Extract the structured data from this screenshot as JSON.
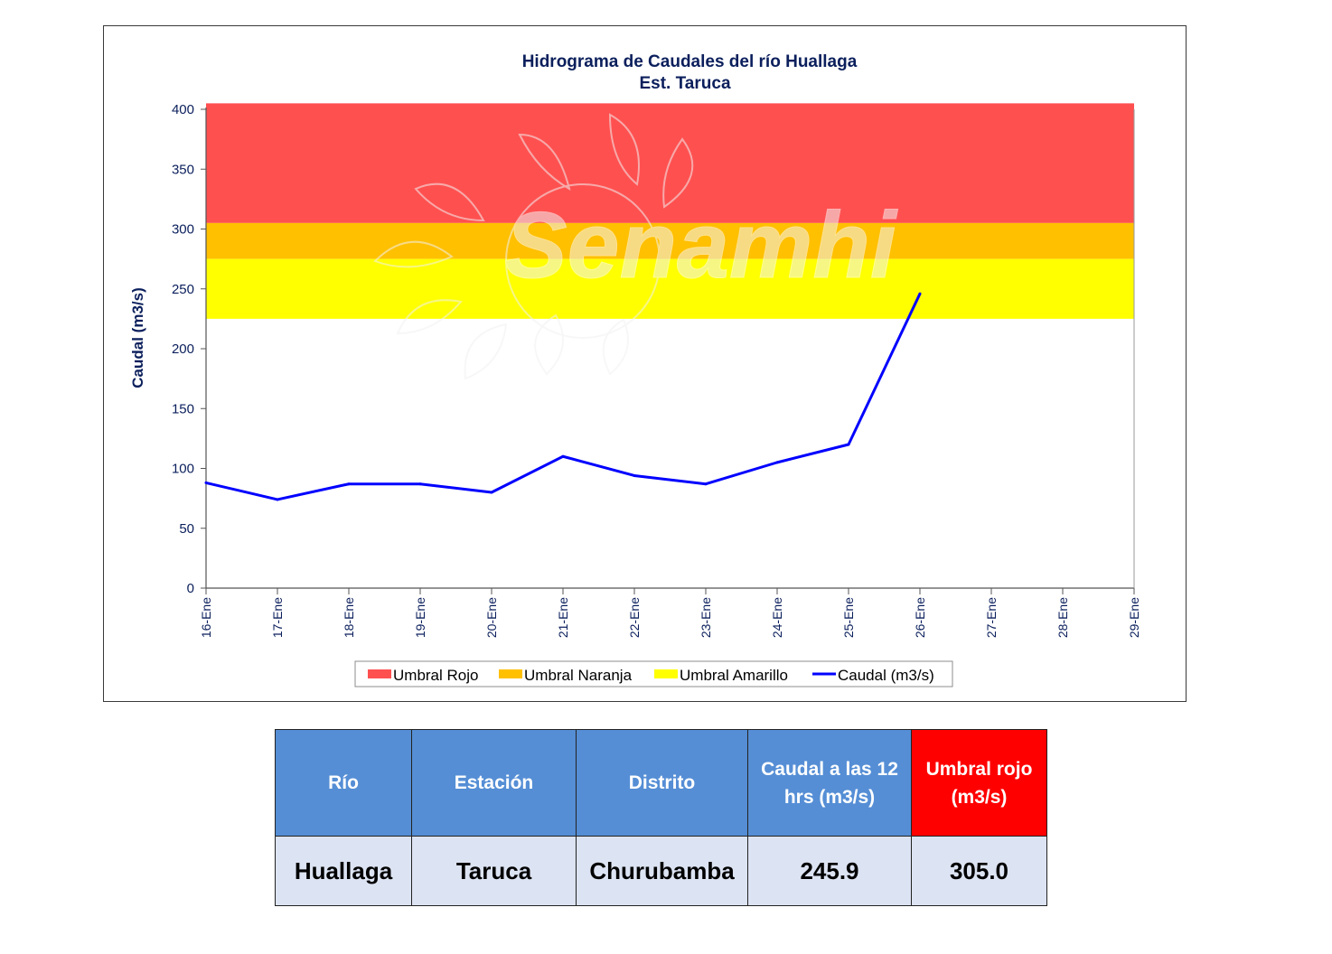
{
  "chart_data": {
    "type": "line",
    "title": "Hidrograma  de Caudales del río Huallaga",
    "subtitle": "Est. Taruca",
    "ylabel": "Caudal (m3/s)",
    "xlabel": "",
    "ylim": [
      0,
      400
    ],
    "yticks": [
      "0",
      "50",
      "100",
      "150",
      "200",
      "250",
      "300",
      "350",
      "400"
    ],
    "categories": [
      "16-Ene",
      "17-Ene",
      "18-Ene",
      "19-Ene",
      "20-Ene",
      "21-Ene",
      "22-Ene",
      "23-Ene",
      "24-Ene",
      "25-Ene",
      "26-Ene",
      "27-Ene",
      "28-Ene",
      "29-Ene"
    ],
    "bands": [
      {
        "name": "Umbral Rojo",
        "from": 305,
        "to": 405,
        "color": "#ff5050"
      },
      {
        "name": "Umbral Naranja",
        "from": 275,
        "to": 305,
        "color": "#ffc000"
      },
      {
        "name": "Umbral Amarillo",
        "from": 225,
        "to": 275,
        "color": "#ffff00"
      }
    ],
    "series": [
      {
        "name": "Caudal (m3/s)",
        "color": "#0000ff",
        "values": [
          88,
          74,
          87,
          87,
          80,
          110,
          94,
          87,
          105,
          120,
          245.9,
          null,
          null,
          null
        ]
      }
    ],
    "legend": [
      "Umbral Rojo",
      "Umbral Naranja",
      "Umbral Amarillo",
      "Caudal (m3/s)"
    ],
    "legend_position": "bottom",
    "grid": false,
    "watermark": "Senamhi"
  },
  "table": {
    "headers": [
      {
        "label": "Río",
        "color": "#558ed5"
      },
      {
        "label": "Estación",
        "color": "#558ed5"
      },
      {
        "label": "Distrito",
        "color": "#558ed5"
      },
      {
        "label": "Caudal a las 12 hrs (m3/s)",
        "color": "#558ed5"
      },
      {
        "label": "Umbral rojo (m3/s)",
        "color": "#ff0000"
      }
    ],
    "row": [
      "Huallaga",
      "Taruca",
      "Churubamba",
      "245.9",
      "305.0"
    ]
  }
}
